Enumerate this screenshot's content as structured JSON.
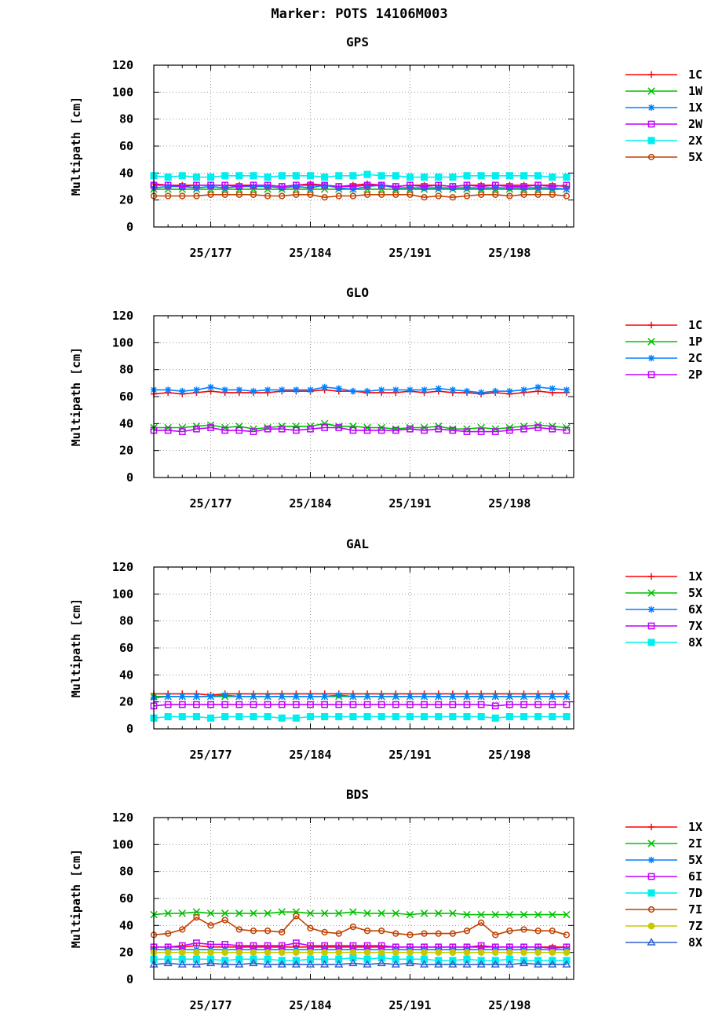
{
  "title": "Marker: POTS 14106M003",
  "chart_data": [
    {
      "type": "line",
      "title": "GPS",
      "xlabel": "",
      "ylabel": "Multipath [cm]",
      "ylim": [
        0,
        120
      ],
      "yticks": [
        0,
        20,
        40,
        60,
        80,
        100,
        120
      ],
      "xlim": [
        173,
        202.5
      ],
      "xticks": [
        177,
        184,
        191,
        198
      ],
      "xtick_labels": [
        "25/177",
        "25/184",
        "25/191",
        "25/198"
      ],
      "x": [
        173,
        174,
        175,
        176,
        177,
        178,
        179,
        180,
        181,
        182,
        183,
        184,
        185,
        186,
        187,
        188,
        189,
        190,
        191,
        192,
        193,
        194,
        195,
        196,
        197,
        198,
        199,
        200,
        201,
        202
      ],
      "grid": true,
      "legend": "right",
      "series": [
        {
          "name": "1C",
          "color": "#ff0000",
          "marker": "plus",
          "values": [
            32,
            31,
            31,
            31,
            31,
            31,
            31,
            31,
            31,
            30,
            31,
            32,
            31,
            30,
            31,
            32,
            31,
            30,
            31,
            31,
            31,
            30,
            31,
            31,
            31,
            31,
            31,
            31,
            31,
            30
          ]
        },
        {
          "name": "1W",
          "color": "#00c000",
          "marker": "cross",
          "values": [
            28,
            28,
            28,
            28,
            28,
            28,
            28,
            28,
            28,
            28,
            28,
            28,
            28,
            28,
            28,
            28,
            28,
            28,
            28,
            28,
            28,
            28,
            28,
            28,
            28,
            28,
            28,
            28,
            28,
            28
          ]
        },
        {
          "name": "1X",
          "color": "#0080ff",
          "marker": "star",
          "values": [
            29,
            30,
            30,
            29,
            30,
            29,
            30,
            30,
            30,
            29,
            30,
            29,
            31,
            29,
            28,
            30,
            31,
            29,
            29,
            29,
            29,
            29,
            29,
            29,
            29,
            29,
            29,
            29,
            29,
            28
          ]
        },
        {
          "name": "2W",
          "color": "#c000ff",
          "marker": "square",
          "values": [
            31,
            31,
            30,
            31,
            31,
            31,
            30,
            31,
            31,
            30,
            31,
            31,
            31,
            30,
            30,
            31,
            31,
            30,
            31,
            30,
            31,
            30,
            31,
            30,
            31,
            30,
            30,
            31,
            30,
            31
          ]
        },
        {
          "name": "2X",
          "color": "#00eeee",
          "marker": "filled-square",
          "values": [
            38,
            37,
            38,
            37,
            37,
            38,
            38,
            38,
            37,
            38,
            38,
            38,
            37,
            38,
            38,
            39,
            38,
            38,
            37,
            37,
            37,
            37,
            38,
            38,
            38,
            38,
            38,
            38,
            37,
            37
          ]
        },
        {
          "name": "5X",
          "color": "#c04000",
          "marker": "circle",
          "values": [
            23,
            23,
            23,
            23,
            24,
            24,
            24,
            24,
            23,
            23,
            24,
            24,
            22,
            23,
            23,
            24,
            24,
            24,
            24,
            22,
            23,
            22,
            23,
            24,
            24,
            23,
            24,
            24,
            24,
            23
          ]
        }
      ]
    },
    {
      "type": "line",
      "title": "GLO",
      "xlabel": "",
      "ylabel": "Multipath [cm]",
      "ylim": [
        0,
        120
      ],
      "yticks": [
        0,
        20,
        40,
        60,
        80,
        100,
        120
      ],
      "xlim": [
        173,
        202.5
      ],
      "xticks": [
        177,
        184,
        191,
        198
      ],
      "xtick_labels": [
        "25/177",
        "25/184",
        "25/191",
        "25/198"
      ],
      "x": [
        173,
        174,
        175,
        176,
        177,
        178,
        179,
        180,
        181,
        182,
        183,
        184,
        185,
        186,
        187,
        188,
        189,
        190,
        191,
        192,
        193,
        194,
        195,
        196,
        197,
        198,
        199,
        200,
        201,
        202
      ],
      "grid": true,
      "legend": "right",
      "series": [
        {
          "name": "1C",
          "color": "#ff0000",
          "marker": "plus",
          "values": [
            62,
            63,
            62,
            63,
            64,
            63,
            63,
            63,
            63,
            64,
            64,
            64,
            65,
            64,
            64,
            63,
            63,
            63,
            64,
            63,
            64,
            63,
            63,
            62,
            63,
            62,
            63,
            64,
            63,
            63
          ]
        },
        {
          "name": "1P",
          "color": "#00c000",
          "marker": "cross",
          "values": [
            37,
            37,
            37,
            38,
            39,
            37,
            38,
            36,
            37,
            38,
            38,
            38,
            40,
            38,
            38,
            37,
            37,
            36,
            37,
            37,
            38,
            36,
            36,
            37,
            36,
            37,
            38,
            39,
            38,
            37
          ]
        },
        {
          "name": "2C",
          "color": "#0080ff",
          "marker": "star",
          "values": [
            65,
            65,
            64,
            65,
            67,
            65,
            65,
            64,
            65,
            65,
            65,
            65,
            67,
            66,
            64,
            64,
            65,
            65,
            65,
            65,
            66,
            65,
            64,
            63,
            64,
            64,
            65,
            67,
            66,
            65
          ]
        },
        {
          "name": "2P",
          "color": "#c000ff",
          "marker": "square",
          "values": [
            35,
            35,
            34,
            36,
            37,
            35,
            35,
            34,
            36,
            36,
            35,
            36,
            37,
            37,
            35,
            35,
            35,
            35,
            36,
            35,
            36,
            35,
            34,
            34,
            34,
            35,
            36,
            37,
            36,
            35
          ]
        }
      ]
    },
    {
      "type": "line",
      "title": "GAL",
      "xlabel": "",
      "ylabel": "Multipath [cm]",
      "ylim": [
        0,
        120
      ],
      "yticks": [
        0,
        20,
        40,
        60,
        80,
        100,
        120
      ],
      "xlim": [
        173,
        202.5
      ],
      "xticks": [
        177,
        184,
        191,
        198
      ],
      "xtick_labels": [
        "25/177",
        "25/184",
        "25/191",
        "25/198"
      ],
      "x": [
        173,
        174,
        175,
        176,
        177,
        178,
        179,
        180,
        181,
        182,
        183,
        184,
        185,
        186,
        187,
        188,
        189,
        190,
        191,
        192,
        193,
        194,
        195,
        196,
        197,
        198,
        199,
        200,
        201,
        202
      ],
      "grid": true,
      "legend": "right",
      "series": [
        {
          "name": "1X",
          "color": "#ff0000",
          "marker": "plus",
          "values": [
            26,
            26,
            26,
            26,
            25,
            26,
            26,
            26,
            26,
            26,
            26,
            26,
            26,
            26,
            26,
            26,
            26,
            26,
            26,
            26,
            26,
            26,
            26,
            26,
            26,
            26,
            26,
            26,
            26,
            26
          ]
        },
        {
          "name": "5X",
          "color": "#00c000",
          "marker": "cross",
          "values": [
            24,
            24,
            24,
            24,
            24,
            24,
            24,
            24,
            24,
            24,
            24,
            24,
            24,
            24,
            24,
            24,
            24,
            24,
            24,
            24,
            24,
            24,
            24,
            24,
            24,
            24,
            24,
            24,
            24,
            24
          ]
        },
        {
          "name": "6X",
          "color": "#0080ff",
          "marker": "star",
          "values": [
            23,
            24,
            24,
            24,
            24,
            25,
            24,
            24,
            24,
            24,
            24,
            24,
            24,
            25,
            24,
            24,
            24,
            24,
            24,
            24,
            24,
            24,
            24,
            24,
            24,
            24,
            24,
            24,
            24,
            24
          ]
        },
        {
          "name": "7X",
          "color": "#c000ff",
          "marker": "square",
          "values": [
            17,
            18,
            18,
            18,
            18,
            18,
            18,
            18,
            18,
            18,
            18,
            18,
            18,
            18,
            18,
            18,
            18,
            18,
            18,
            18,
            18,
            18,
            18,
            18,
            17,
            18,
            18,
            18,
            18,
            18
          ]
        },
        {
          "name": "8X",
          "color": "#00eeee",
          "marker": "filled-square",
          "values": [
            8,
            9,
            9,
            9,
            8,
            9,
            9,
            9,
            9,
            8,
            8,
            9,
            9,
            9,
            9,
            9,
            9,
            9,
            9,
            9,
            9,
            9,
            9,
            9,
            8,
            9,
            9,
            9,
            9,
            9
          ]
        }
      ]
    },
    {
      "type": "line",
      "title": "BDS",
      "xlabel": "",
      "ylabel": "Multipath [cm]",
      "ylim": [
        0,
        120
      ],
      "yticks": [
        0,
        20,
        40,
        60,
        80,
        100,
        120
      ],
      "xlim": [
        173,
        202.5
      ],
      "xticks": [
        177,
        184,
        191,
        198
      ],
      "xtick_labels": [
        "25/177",
        "25/184",
        "25/191",
        "25/198"
      ],
      "x": [
        173,
        174,
        175,
        176,
        177,
        178,
        179,
        180,
        181,
        182,
        183,
        184,
        185,
        186,
        187,
        188,
        189,
        190,
        191,
        192,
        193,
        194,
        195,
        196,
        197,
        198,
        199,
        200,
        201,
        202
      ],
      "grid": true,
      "legend": "right",
      "series": [
        {
          "name": "1X",
          "color": "#ff0000",
          "marker": "plus",
          "values": [
            24,
            24,
            24,
            25,
            24,
            24,
            24,
            24,
            24,
            24,
            24,
            24,
            24,
            24,
            24,
            24,
            24,
            24,
            24,
            24,
            24,
            24,
            24,
            24,
            24,
            24,
            24,
            24,
            24,
            24
          ]
        },
        {
          "name": "2I",
          "color": "#00c000",
          "marker": "cross",
          "values": [
            48,
            49,
            49,
            50,
            49,
            49,
            49,
            49,
            49,
            50,
            50,
            49,
            49,
            49,
            50,
            49,
            49,
            49,
            48,
            49,
            49,
            49,
            48,
            48,
            48,
            48,
            48,
            48,
            48,
            48
          ]
        },
        {
          "name": "5X",
          "color": "#0080ff",
          "marker": "star",
          "values": [
            22,
            22,
            22,
            22,
            22,
            22,
            22,
            22,
            22,
            22,
            22,
            22,
            22,
            22,
            22,
            22,
            22,
            22,
            22,
            22,
            22,
            22,
            22,
            22,
            22,
            22,
            22,
            22,
            22,
            22
          ]
        },
        {
          "name": "6I",
          "color": "#c000ff",
          "marker": "square",
          "values": [
            24,
            24,
            25,
            27,
            26,
            26,
            25,
            25,
            25,
            25,
            27,
            25,
            25,
            25,
            25,
            25,
            25,
            24,
            24,
            24,
            24,
            24,
            24,
            25,
            24,
            24,
            24,
            24,
            23,
            24
          ]
        },
        {
          "name": "7D",
          "color": "#00eeee",
          "marker": "filled-square",
          "values": [
            15,
            15,
            15,
            15,
            15,
            14,
            15,
            15,
            15,
            14,
            14,
            15,
            15,
            15,
            16,
            15,
            16,
            15,
            15,
            15,
            14,
            14,
            15,
            14,
            14,
            15,
            14,
            14,
            14,
            14
          ]
        },
        {
          "name": "7I",
          "color": "#c04000",
          "marker": "circle",
          "values": [
            33,
            34,
            37,
            46,
            40,
            44,
            37,
            36,
            36,
            35,
            47,
            38,
            35,
            34,
            39,
            36,
            36,
            34,
            33,
            34,
            34,
            34,
            36,
            42,
            33,
            36,
            37,
            36,
            36,
            33
          ]
        },
        {
          "name": "7Z",
          "color": "#c8c800",
          "marker": "filled-circle",
          "values": [
            20,
            20,
            20,
            20,
            20,
            20,
            20,
            20,
            20,
            20,
            20,
            20,
            20,
            20,
            20,
            20,
            20,
            20,
            20,
            20,
            20,
            20,
            20,
            20,
            20,
            20,
            20,
            20,
            20,
            20
          ]
        },
        {
          "name": "8X",
          "color": "#3060d0",
          "marker": "triangle",
          "values": [
            11,
            12,
            11,
            11,
            12,
            11,
            11,
            12,
            11,
            11,
            11,
            11,
            11,
            11,
            12,
            11,
            12,
            11,
            12,
            11,
            11,
            11,
            11,
            11,
            11,
            11,
            12,
            11,
            11,
            11
          ]
        }
      ]
    }
  ]
}
